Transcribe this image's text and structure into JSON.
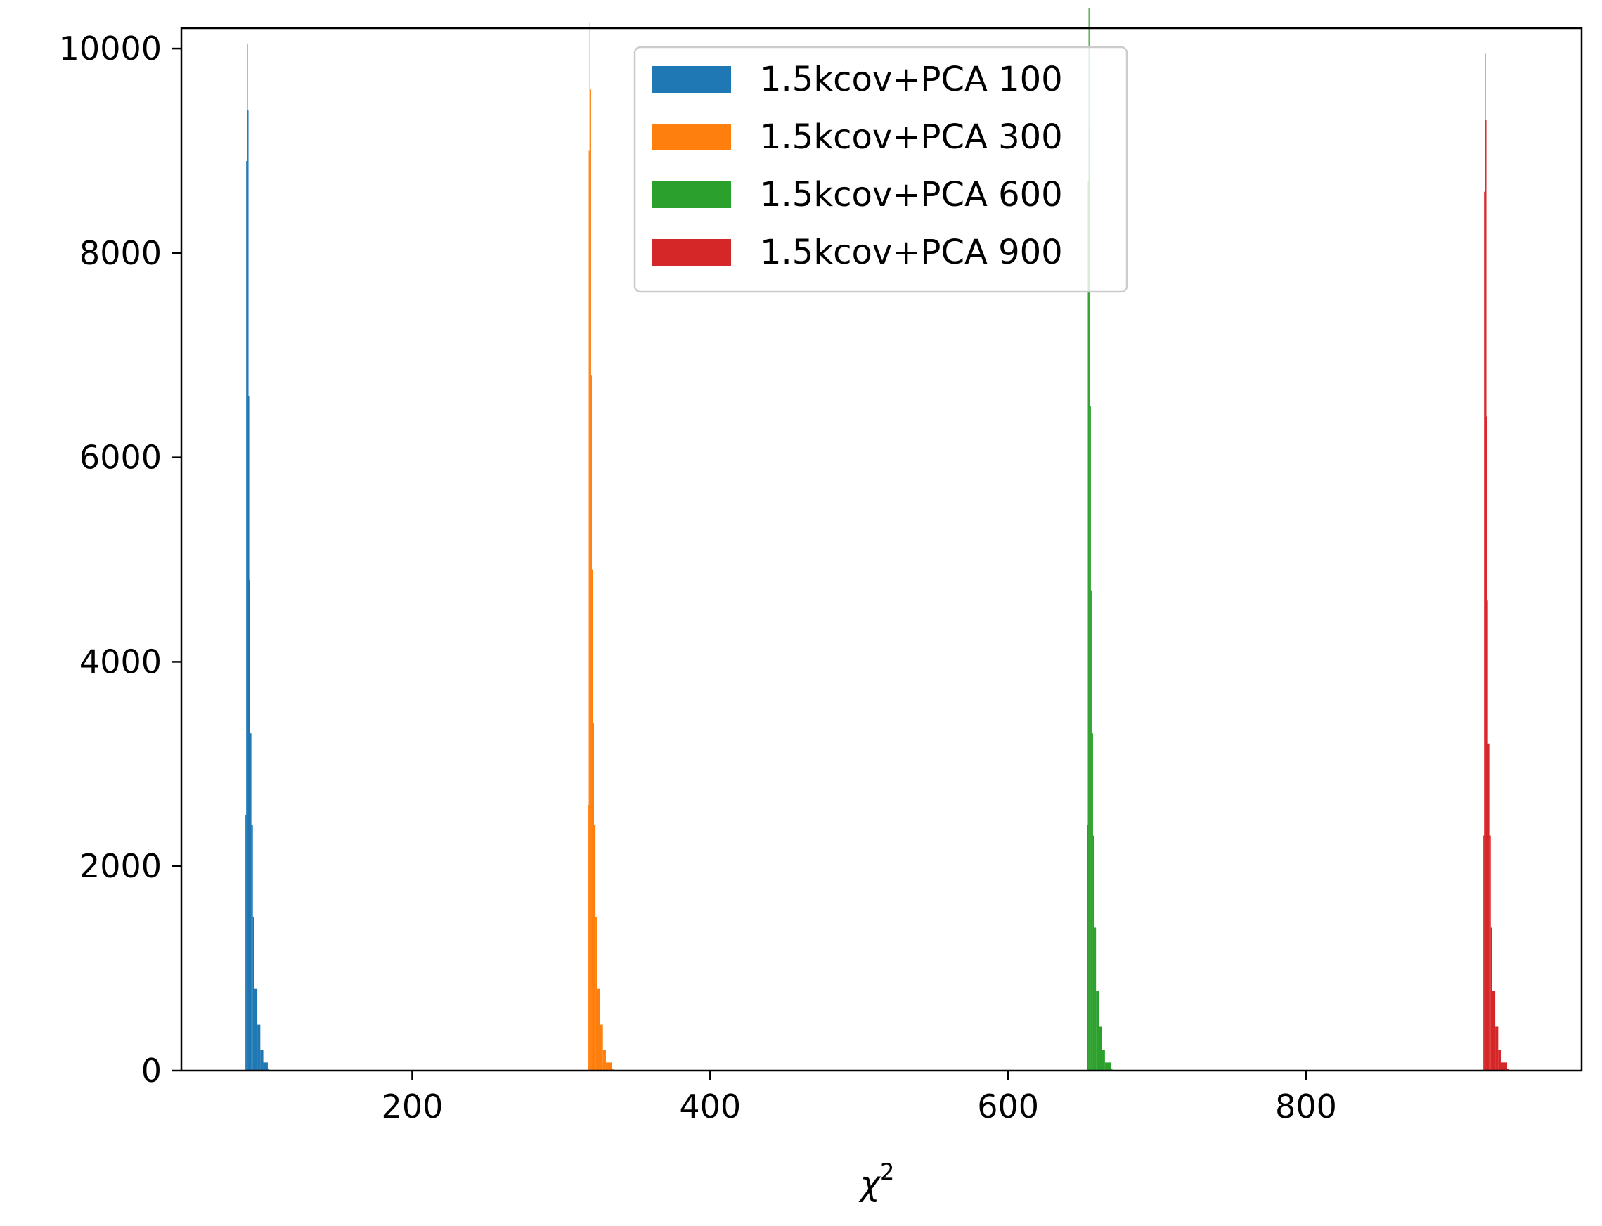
{
  "chart_data": {
    "type": "bar",
    "subtype": "histogram",
    "title": "",
    "xlabel": "χ",
    "xlabel_superscript": "2",
    "ylabel": "",
    "xlim": [
      45,
      985
    ],
    "ylim": [
      0,
      10200
    ],
    "xticks": [
      200,
      400,
      600,
      800
    ],
    "yticks": [
      0,
      2000,
      4000,
      6000,
      8000,
      10000
    ],
    "grid": false,
    "legend_position": "upper center",
    "series": [
      {
        "name": "1.5kcov+PCA 100",
        "color": "#1f77b4",
        "x": [
          88,
          88.5,
          89,
          89.5,
          90,
          90.5,
          91,
          92,
          93,
          94,
          96,
          98,
          100,
          103
        ],
        "values": [
          2500,
          8900,
          10050,
          9400,
          6600,
          4800,
          3300,
          2400,
          1500,
          800,
          450,
          200,
          80,
          20
        ]
      },
      {
        "name": "1.5kcov+PCA 300",
        "color": "#ff7f0e",
        "x": [
          318,
          318.5,
          319,
          319.5,
          320,
          320.5,
          321,
          322,
          323,
          324,
          326,
          328,
          330,
          334
        ],
        "values": [
          2600,
          9000,
          10250,
          9600,
          6800,
          4900,
          3400,
          2400,
          1500,
          800,
          450,
          200,
          80,
          20
        ]
      },
      {
        "name": "1.5kcov+PCA 600",
        "color": "#2ca02c",
        "x": [
          653,
          653.5,
          654,
          654.5,
          655,
          655.5,
          656,
          657,
          658,
          659,
          661,
          663,
          665,
          669
        ],
        "values": [
          2400,
          8700,
          10400,
          9200,
          6500,
          4700,
          3300,
          2300,
          1400,
          780,
          430,
          200,
          80,
          20
        ]
      },
      {
        "name": "1.5kcov+PCA 900",
        "color": "#d62728",
        "x": [
          919,
          919.5,
          920,
          920.5,
          921,
          921.5,
          922,
          923,
          924,
          925,
          927,
          929,
          931,
          935
        ],
        "values": [
          2300,
          8600,
          9950,
          9300,
          6400,
          4600,
          3200,
          2300,
          1400,
          780,
          430,
          200,
          80,
          20
        ]
      }
    ]
  }
}
